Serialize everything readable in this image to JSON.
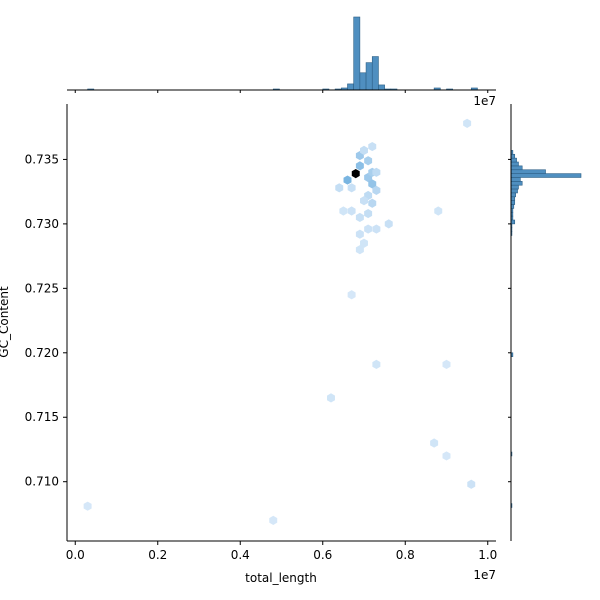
{
  "chart_data": {
    "type": "jointplot-hexbin",
    "xlabel": "total_length",
    "ylabel": "GC_Content",
    "x_offset_label": "1e7",
    "xlim": [
      -0.02,
      1.02
    ],
    "ylim": [
      0.7054,
      0.7393
    ],
    "x_ticks": [
      0.0,
      0.2,
      0.4,
      0.6,
      0.8,
      1.0
    ],
    "x_tick_labels": [
      "0.0",
      "0.2",
      "0.4",
      "0.6",
      "0.8",
      "1.0"
    ],
    "y_ticks": [
      0.71,
      0.715,
      0.72,
      0.725,
      0.73,
      0.735
    ],
    "y_tick_labels": [
      "0.710",
      "0.715",
      "0.720",
      "0.725",
      "0.730",
      "0.735"
    ],
    "colors": {
      "accent": "#1f77b4",
      "bar_fill": "#4f8fc0",
      "bar_edge": "#2c5f86",
      "hex_peak": "#000000",
      "hex_low": "#e8f2fb"
    },
    "hexbins": [
      {
        "x": 0.68,
        "y": 0.7339,
        "count": 100
      },
      {
        "x": 0.66,
        "y": 0.7334,
        "count": 22
      },
      {
        "x": 0.69,
        "y": 0.7353,
        "count": 14
      },
      {
        "x": 0.71,
        "y": 0.7349,
        "count": 12
      },
      {
        "x": 0.69,
        "y": 0.7345,
        "count": 18
      },
      {
        "x": 0.71,
        "y": 0.7336,
        "count": 14
      },
      {
        "x": 0.72,
        "y": 0.7331,
        "count": 16
      },
      {
        "x": 0.73,
        "y": 0.7326,
        "count": 9
      },
      {
        "x": 0.72,
        "y": 0.734,
        "count": 12
      },
      {
        "x": 0.7,
        "y": 0.7357,
        "count": 7
      },
      {
        "x": 0.72,
        "y": 0.736,
        "count": 6
      },
      {
        "x": 0.73,
        "y": 0.734,
        "count": 8
      },
      {
        "x": 0.67,
        "y": 0.7328,
        "count": 6
      },
      {
        "x": 0.64,
        "y": 0.7328,
        "count": 7
      },
      {
        "x": 0.71,
        "y": 0.7322,
        "count": 8
      },
      {
        "x": 0.7,
        "y": 0.7318,
        "count": 6
      },
      {
        "x": 0.72,
        "y": 0.7316,
        "count": 9
      },
      {
        "x": 0.71,
        "y": 0.7308,
        "count": 7
      },
      {
        "x": 0.69,
        "y": 0.7305,
        "count": 6
      },
      {
        "x": 0.67,
        "y": 0.731,
        "count": 5
      },
      {
        "x": 0.65,
        "y": 0.731,
        "count": 4
      },
      {
        "x": 0.71,
        "y": 0.7296,
        "count": 5
      },
      {
        "x": 0.73,
        "y": 0.7296,
        "count": 5
      },
      {
        "x": 0.69,
        "y": 0.7292,
        "count": 5
      },
      {
        "x": 0.7,
        "y": 0.7285,
        "count": 4
      },
      {
        "x": 0.69,
        "y": 0.728,
        "count": 4
      },
      {
        "x": 0.76,
        "y": 0.73,
        "count": 6
      },
      {
        "x": 0.88,
        "y": 0.731,
        "count": 4
      },
      {
        "x": 0.95,
        "y": 0.7378,
        "count": 4
      },
      {
        "x": 0.67,
        "y": 0.7245,
        "count": 3
      },
      {
        "x": 0.73,
        "y": 0.7191,
        "count": 4
      },
      {
        "x": 0.9,
        "y": 0.7191,
        "count": 3
      },
      {
        "x": 0.62,
        "y": 0.7165,
        "count": 4
      },
      {
        "x": 0.87,
        "y": 0.713,
        "count": 4
      },
      {
        "x": 0.9,
        "y": 0.712,
        "count": 3
      },
      {
        "x": 0.96,
        "y": 0.7098,
        "count": 5
      },
      {
        "x": 0.03,
        "y": 0.7081,
        "count": 3
      },
      {
        "x": 0.48,
        "y": 0.707,
        "count": 3
      }
    ],
    "x_marginal": {
      "bin_starts": [
        0.0,
        0.03,
        0.06,
        0.09,
        0.12,
        0.15,
        0.18,
        0.21,
        0.24,
        0.27,
        0.3,
        0.33,
        0.36,
        0.39,
        0.42,
        0.45,
        0.48,
        0.51,
        0.54,
        0.57,
        0.6,
        0.615,
        0.63,
        0.645,
        0.66,
        0.675,
        0.69,
        0.705,
        0.72,
        0.735,
        0.75,
        0.765,
        0.78,
        0.81,
        0.84,
        0.87,
        0.9,
        0.93,
        0.96
      ],
      "bin_width": 0.015,
      "counts": [
        0,
        1,
        0,
        0,
        0,
        0,
        0,
        0,
        0,
        0,
        0,
        0,
        0,
        0,
        0,
        0,
        1,
        0,
        0,
        0,
        1,
        0,
        1,
        2,
        6,
        72,
        17,
        27,
        33,
        5,
        1,
        1,
        0,
        0,
        0,
        2,
        1,
        0,
        2
      ]
    },
    "y_marginal": {
      "bin_starts": [
        0.733,
        0.7333,
        0.7336,
        0.7339,
        0.7342,
        0.7345,
        0.7348,
        0.7351,
        0.7354,
        0.7327,
        0.7324,
        0.7321,
        0.7318,
        0.7315,
        0.7312,
        0.7309,
        0.7306,
        0.7303,
        0.73,
        0.7297,
        0.7294,
        0.7291,
        0.7197,
        0.712,
        0.708
      ],
      "bin_height": 0.0003,
      "counts": [
        12,
        10,
        75,
        37,
        12,
        8,
        6,
        4,
        2,
        8,
        7,
        5,
        4,
        4,
        3,
        2,
        2,
        2,
        4,
        1,
        1,
        1,
        2,
        1,
        1
      ]
    }
  }
}
